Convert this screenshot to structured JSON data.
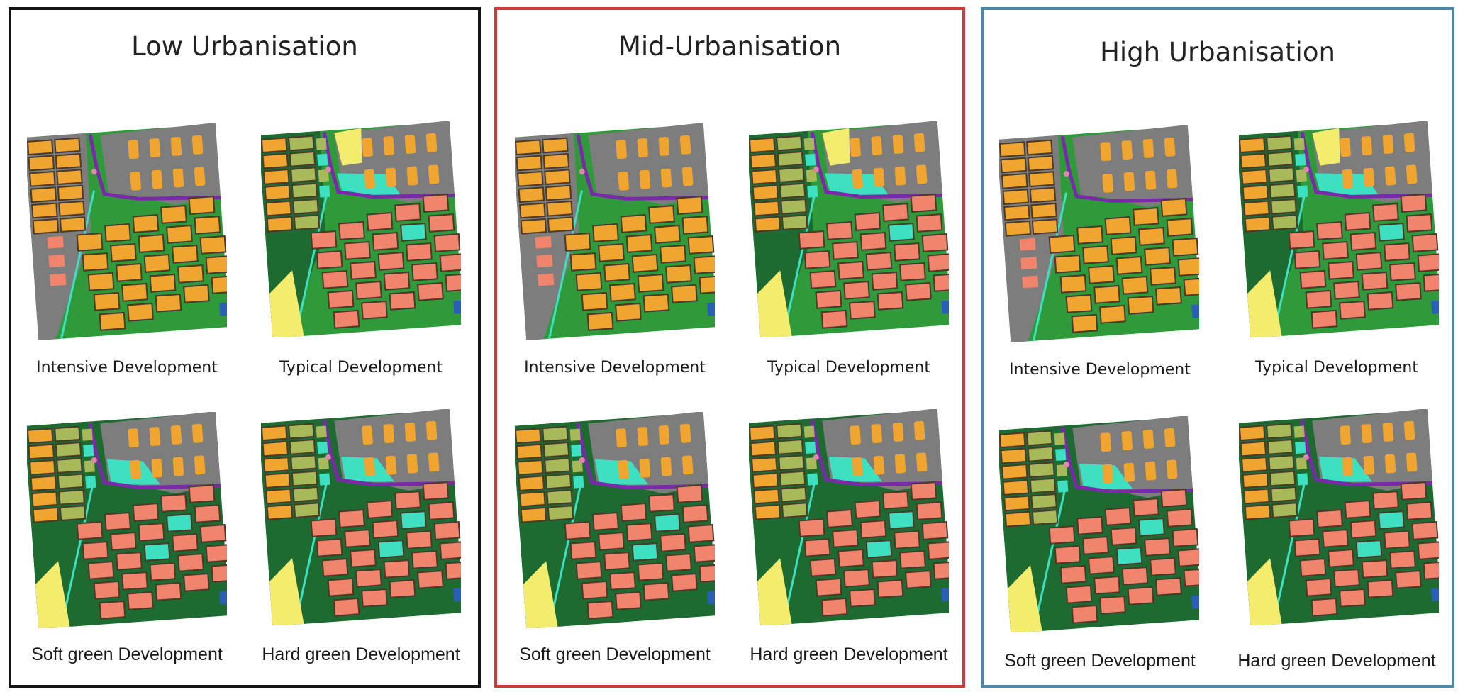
{
  "panels": [
    {
      "title": "Low Urbanisation",
      "border_color": "#141414",
      "scenarios": [
        {
          "label": "Intensive Development",
          "style": "intensive"
        },
        {
          "label": "Typical Development",
          "style": "typical"
        },
        {
          "label": "Soft green Development",
          "style": "soft"
        },
        {
          "label": "Hard green Development",
          "style": "hard"
        }
      ]
    },
    {
      "title": "Mid-Urbanisation",
      "border_color": "#d23a3a",
      "scenarios": [
        {
          "label": "Intensive Development",
          "style": "intensive"
        },
        {
          "label": "Typical Development",
          "style": "typical"
        },
        {
          "label": "Soft green Development",
          "style": "soft"
        },
        {
          "label": "Hard green Development",
          "style": "hard"
        }
      ]
    },
    {
      "title": "High Urbanisation",
      "border_color": "#4a8aa8",
      "scenarios": [
        {
          "label": "Intensive Development",
          "style": "intensive"
        },
        {
          "label": "Typical Development",
          "style": "typical"
        },
        {
          "label": "Soft green Development",
          "style": "soft"
        },
        {
          "label": "Hard green Development",
          "style": "hard"
        }
      ]
    }
  ],
  "land_use_colors": {
    "grey_area": "#7d7d7d",
    "orange_blocks": "#f0a531",
    "salmon_blocks": "#f0846c",
    "dark_green": "#1e6b32",
    "bright_green": "#2f9a3a",
    "turquoise": "#3ee0c2",
    "olive": "#a8b95a",
    "yellow": "#f4ec6e",
    "purple": "#7a2aa8",
    "dark_lines": "#4a3a2a",
    "blue": "#2a5fb8",
    "pink": "#d98aa4"
  }
}
